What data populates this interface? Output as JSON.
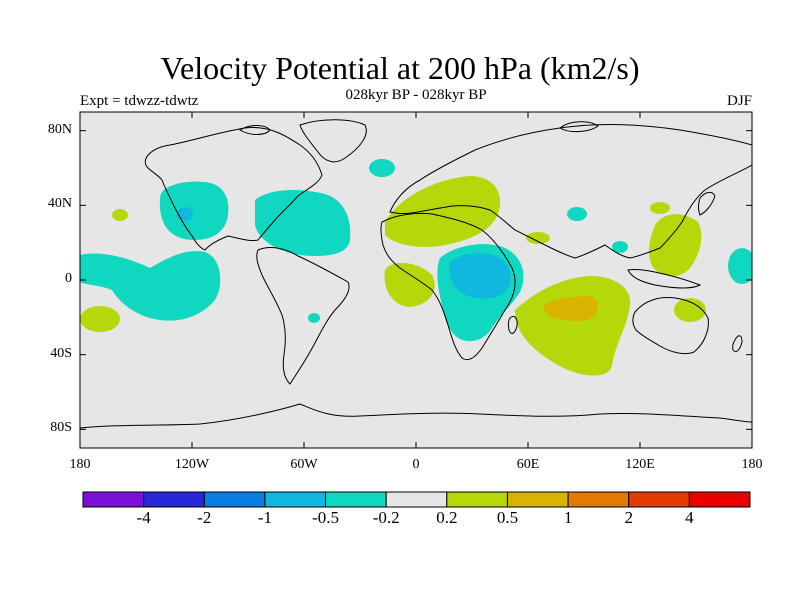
{
  "title": "Velocity Potential at 200 hPa (km2/s)",
  "subtitle": "028kyr BP - 028kyr BP",
  "experiment": "Expt = tdwzz-tdwtz",
  "season": "DJF",
  "map": {
    "lat_labels": [
      "80N",
      "40N",
      "0",
      "40S",
      "80S"
    ],
    "lon_labels": [
      "180",
      "120W",
      "60W",
      "0",
      "60E",
      "120E",
      "180"
    ],
    "background_color": "#e6e6e6",
    "coastline_color": "#000000"
  },
  "colorbar": {
    "colors": [
      "#7b10d8",
      "#2828d8",
      "#0a7ee0",
      "#10b8e0",
      "#10d8c0",
      "#e6e6e6",
      "#b4d80a",
      "#d8b400",
      "#e07a00",
      "#e03c00",
      "#e80000"
    ],
    "labels": [
      "-4",
      "-2",
      "-1",
      "-0.5",
      "-0.2",
      "0.2",
      "0.5",
      "1",
      "2",
      "4"
    ]
  }
}
